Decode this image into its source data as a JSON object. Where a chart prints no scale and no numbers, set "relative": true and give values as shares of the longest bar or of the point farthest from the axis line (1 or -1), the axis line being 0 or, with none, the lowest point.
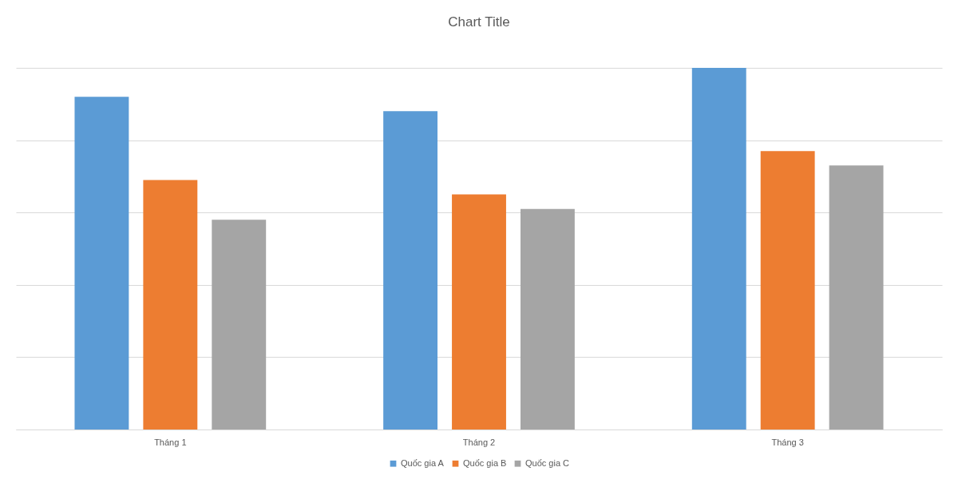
{
  "chart_data": {
    "type": "bar",
    "title": "Chart Title",
    "relative": true,
    "categories": [
      "Tháng 1",
      "Tháng 2",
      "Tháng 3"
    ],
    "series": [
      {
        "name": "Quốc gia A",
        "color": "#5b9bd5",
        "values": [
          0.92,
          0.88,
          1
        ]
      },
      {
        "name": "Quốc gia B",
        "color": "#ed7d31",
        "values": [
          0.69,
          0.65,
          0.77
        ]
      },
      {
        "name": "Quốc gia C",
        "color": "#a5a5a5",
        "values": [
          0.58,
          0.61,
          0.73
        ]
      }
    ],
    "grid": "y",
    "legend": "bottom"
  }
}
